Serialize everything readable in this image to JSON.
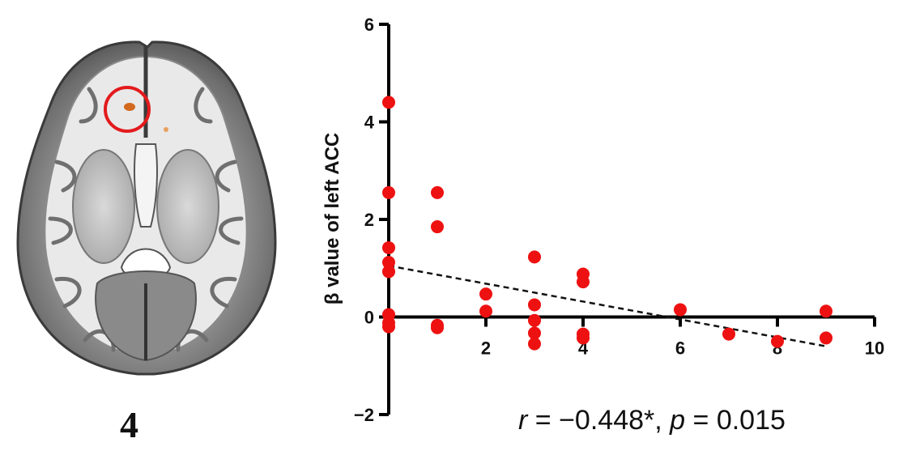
{
  "panel_number": "4",
  "stats": {
    "r_label": "r",
    "r_value": "−0.448*",
    "sep": ",",
    "p_label": "p",
    "p_value": "0.015"
  },
  "colors": {
    "points": "#ee1111",
    "circle": "#e31a1c",
    "activation": "#d2691e",
    "axis": "#000000"
  },
  "chart_data": {
    "type": "scatter",
    "title": "",
    "xlabel": "",
    "ylabel": "β value of left ACC",
    "xlim": [
      0,
      10
    ],
    "ylim": [
      -2,
      6
    ],
    "x_ticks": [
      "2",
      "4",
      "6",
      "8",
      "10"
    ],
    "y_ticks": [
      "−2",
      "0",
      "2",
      "4",
      "6"
    ],
    "grid": false,
    "legend": "none",
    "series": [
      {
        "points": [
          [
            0,
            4.4
          ],
          [
            0,
            2.55
          ],
          [
            0,
            1.42
          ],
          [
            0,
            1.12
          ],
          [
            0,
            0.93
          ],
          [
            0,
            0.05
          ],
          [
            0,
            -0.12
          ],
          [
            0,
            -0.2
          ],
          [
            1,
            2.55
          ],
          [
            1,
            1.85
          ],
          [
            1,
            -0.17
          ],
          [
            1,
            -0.22
          ],
          [
            2,
            0.47
          ],
          [
            2,
            0.12
          ],
          [
            3,
            1.23
          ],
          [
            3,
            0.25
          ],
          [
            3,
            -0.07
          ],
          [
            3,
            -0.33
          ],
          [
            3,
            -0.55
          ],
          [
            4,
            0.88
          ],
          [
            4,
            0.72
          ],
          [
            4,
            -0.35
          ],
          [
            4,
            -0.43
          ],
          [
            6,
            0.15
          ],
          [
            7,
            -0.35
          ],
          [
            8,
            -0.5
          ],
          [
            9,
            0.12
          ],
          [
            9,
            -0.43
          ]
        ]
      }
    ],
    "fit_line": {
      "style": "dashed",
      "x": [
        0,
        9
      ],
      "y": [
        1.05,
        -0.6
      ]
    }
  }
}
